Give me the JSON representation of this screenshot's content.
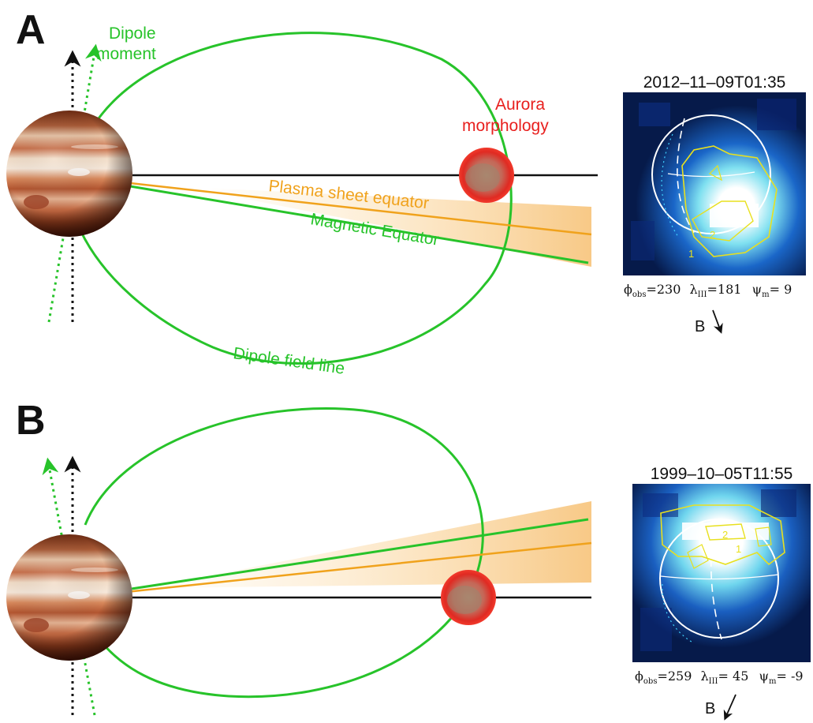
{
  "colors": {
    "field_green": "#27c32a",
    "plasma_orange": "#f0a21c",
    "aurora_red": "#e8201e",
    "axis_black": "#111111"
  },
  "panels": [
    {
      "letter": "A",
      "dipole_label_line1": "Dipole",
      "dipole_label_line2": "moment",
      "aurora_label_line1": "Aurora",
      "aurora_label_line2": "morphology",
      "plasma_label": "Plasma sheet equator",
      "magnetic_label": "Magnetic Equator",
      "field_line_label": "Dipole field line",
      "timestamp": "2012–11–09T01:35",
      "phi_sym": "ϕ",
      "phi_sub": "obs",
      "phi_val": "=230",
      "lambda_sym": "λ",
      "lambda_sub": "III",
      "lambda_val": "=181",
      "psi_sym": "ψ",
      "psi_sub": "m",
      "psi_val": "=  9",
      "b_label": "B",
      "contour_labels": [
        "2",
        "1"
      ]
    },
    {
      "letter": "B",
      "timestamp": "1999–10–05T11:55",
      "phi_sym": "ϕ",
      "phi_sub": "obs",
      "phi_val": "=259",
      "lambda_sym": "λ",
      "lambda_sub": "III",
      "lambda_val": "= 45",
      "psi_sym": "ψ",
      "psi_sub": "m",
      "psi_val": "= -9",
      "b_label": "B",
      "contour_labels": [
        "2",
        "1"
      ]
    }
  ]
}
